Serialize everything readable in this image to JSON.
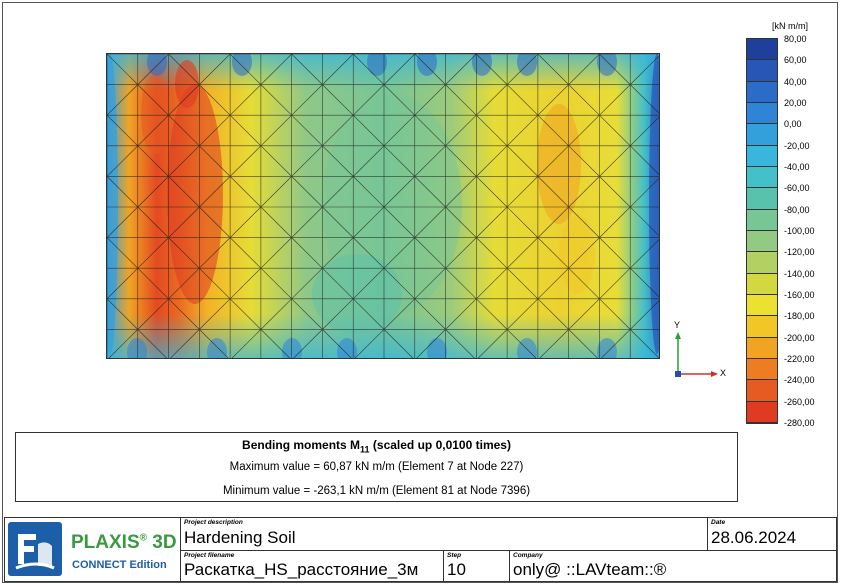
{
  "legend": {
    "unit": "[kN m/m]",
    "ticks": [
      "80,00",
      "60,00",
      "40,00",
      "20,00",
      "0,00",
      "-20,00",
      "-40,00",
      "-60,00",
      "-80,00",
      "-100,00",
      "-120,00",
      "-140,00",
      "-160,00",
      "-180,00",
      "-200,00",
      "-220,00",
      "-240,00",
      "-260,00",
      "-280,00"
    ],
    "colors": [
      "#1f3f9c",
      "#2656b6",
      "#2b6cc8",
      "#2f84d6",
      "#33a0de",
      "#38b6dc",
      "#44c0c9",
      "#59c2ad",
      "#78c596",
      "#92c983",
      "#b3d063",
      "#d4d840",
      "#ece130",
      "#f2c626",
      "#f1a423",
      "#ec7d21",
      "#e55b22",
      "#df3b22"
    ]
  },
  "axes": {
    "x": "X",
    "y": "Y"
  },
  "results": {
    "title": "Bending moments M",
    "subscript": "11",
    "title_suffix": " (scaled up 0,0100 times)",
    "max_line": "Maximum value = 60,87 kN m/m (Element 7 at Node 227)",
    "min_line": "Minimum value = -263,1 kN m/m (Element 81 at Node 7396)"
  },
  "titleblock": {
    "brand": "PLAXIS",
    "brand_sup": "®",
    "brand_suffix": " 3D",
    "edition": "CONNECT Edition",
    "project_description_caption": "Project description",
    "project_description": "Hardening Soil",
    "date_caption": "Date",
    "date": "28.06.2024",
    "project_filename_caption": "Project filename",
    "project_filename": "Раскатка_HS_расстояние_3м",
    "step_caption": "Step",
    "step": "10",
    "company_caption": "Company",
    "company": "only@ ::LAVteam::®"
  }
}
